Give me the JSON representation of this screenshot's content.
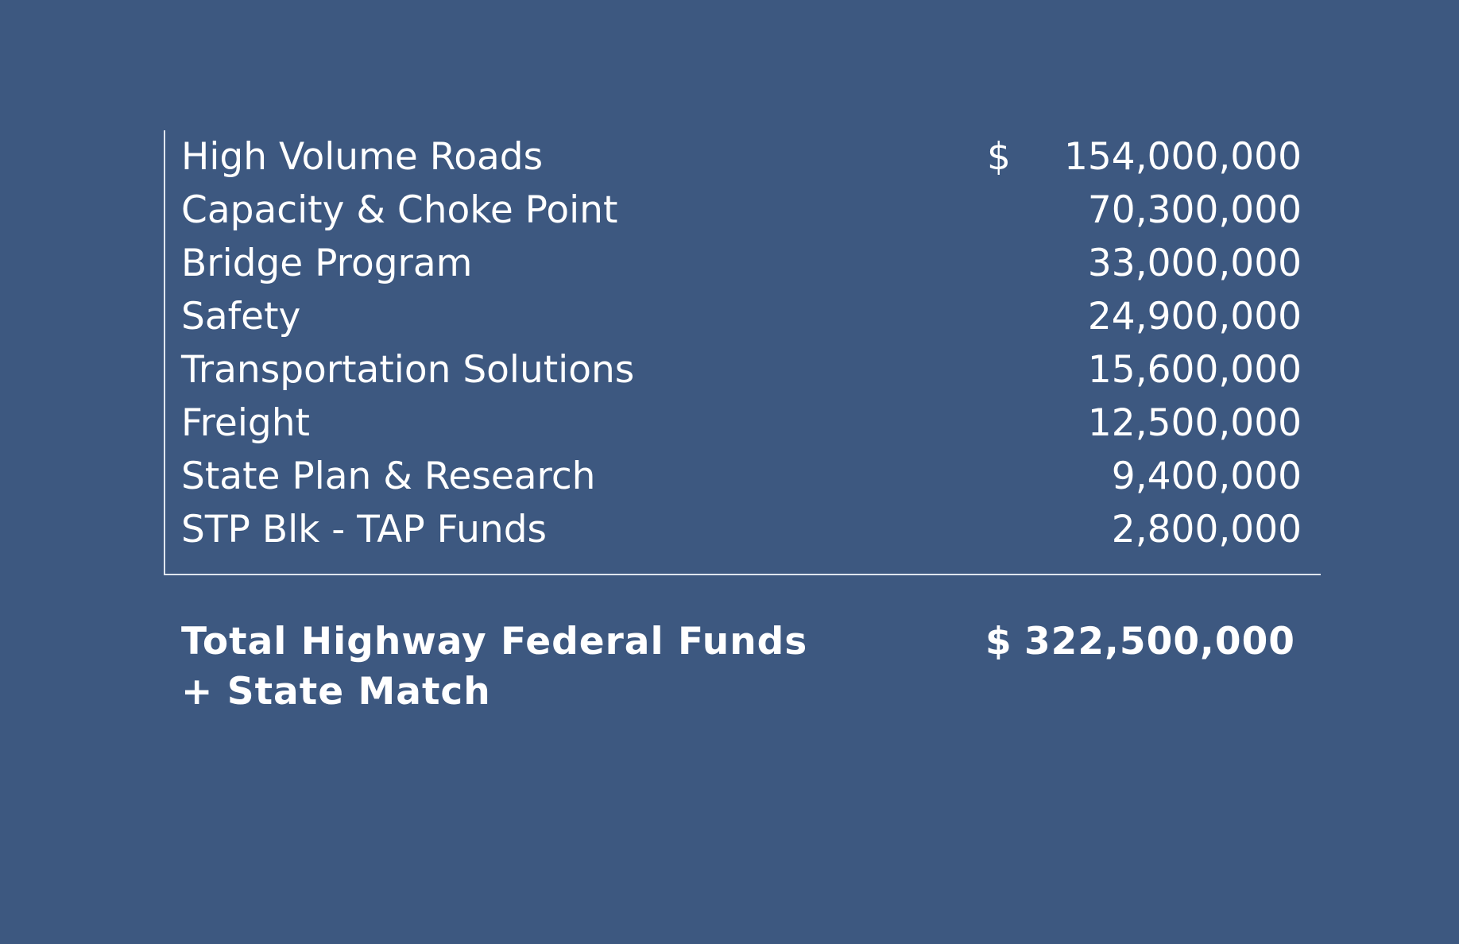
{
  "currency_symbol": "$",
  "rows": [
    {
      "label": "High Volume Roads",
      "amount": "154,000,000",
      "show_currency": true
    },
    {
      "label": "Capacity & Choke Point",
      "amount": "70,300,000",
      "show_currency": false
    },
    {
      "label": "Bridge Program",
      "amount": "33,000,000",
      "show_currency": false
    },
    {
      "label": "Safety",
      "amount": "24,900,000",
      "show_currency": false
    },
    {
      "label": "Transportation Solutions",
      "amount": "15,600,000",
      "show_currency": false
    },
    {
      "label": "Freight",
      "amount": "12,500,000",
      "show_currency": false
    },
    {
      "label": "State Plan & Research",
      "amount": "9,400,000",
      "show_currency": false
    },
    {
      "label": "STP Blk - TAP Funds",
      "amount": "2,800,000",
      "show_currency": false
    }
  ],
  "total": {
    "label_line1": "Total Highway Federal Funds",
    "label_line2": "+ State Match",
    "amount": "322,500,000"
  },
  "colors": {
    "background": "#3d5880",
    "text": "#ffffff",
    "rule": "#dfe5ee"
  }
}
